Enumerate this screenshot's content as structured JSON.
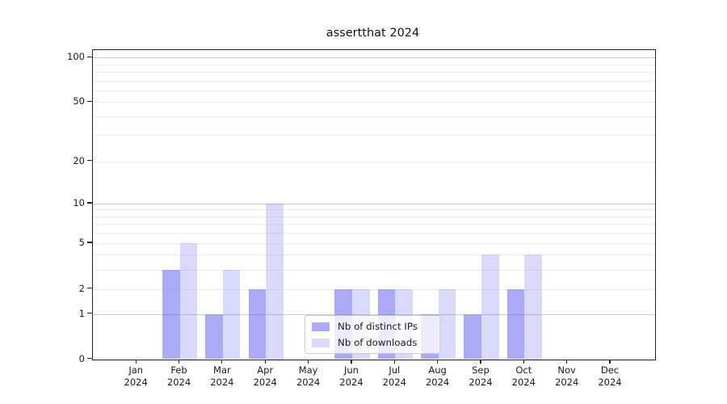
{
  "title": "assertthat 2024",
  "chart_data": {
    "type": "bar",
    "title": "assertthat 2024",
    "x_tick_months": [
      "Jan",
      "Feb",
      "Mar",
      "Apr",
      "May",
      "Jun",
      "Jul",
      "Aug",
      "Sep",
      "Oct",
      "Nov",
      "Dec"
    ],
    "x_tick_year": "2024",
    "series": [
      {
        "name": "Nb of distinct IPs",
        "values": [
          0,
          3,
          1,
          2,
          0,
          2,
          2,
          1,
          1,
          2,
          0,
          0
        ],
        "color": "#a9a9f7",
        "fill": "rgba(105,105,240,0.57)"
      },
      {
        "name": "Nb of downloads",
        "values": [
          0,
          5,
          3,
          10,
          0,
          2,
          2,
          2,
          4,
          4,
          0,
          0
        ],
        "color": "#d9d9f9",
        "fill": "rgba(105,105,240,0.25)"
      }
    ],
    "y_ticks": [
      100,
      50,
      20,
      10,
      5,
      2,
      1,
      0
    ],
    "ylim": [
      0,
      100
    ],
    "y_scale": "log-like with zero baseline",
    "grid": {
      "major_values": [
        1,
        10,
        100
      ],
      "minor_values": [
        2,
        3,
        4,
        5,
        6,
        7,
        8,
        9,
        20,
        30,
        40,
        50,
        60,
        70,
        80,
        90
      ],
      "major_color": "#c9c9c9",
      "minor_color": "#ececec"
    },
    "legend": {
      "position": "inside bottom-center",
      "entries": [
        "Nb of distinct IPs",
        "Nb of downloads"
      ]
    }
  }
}
